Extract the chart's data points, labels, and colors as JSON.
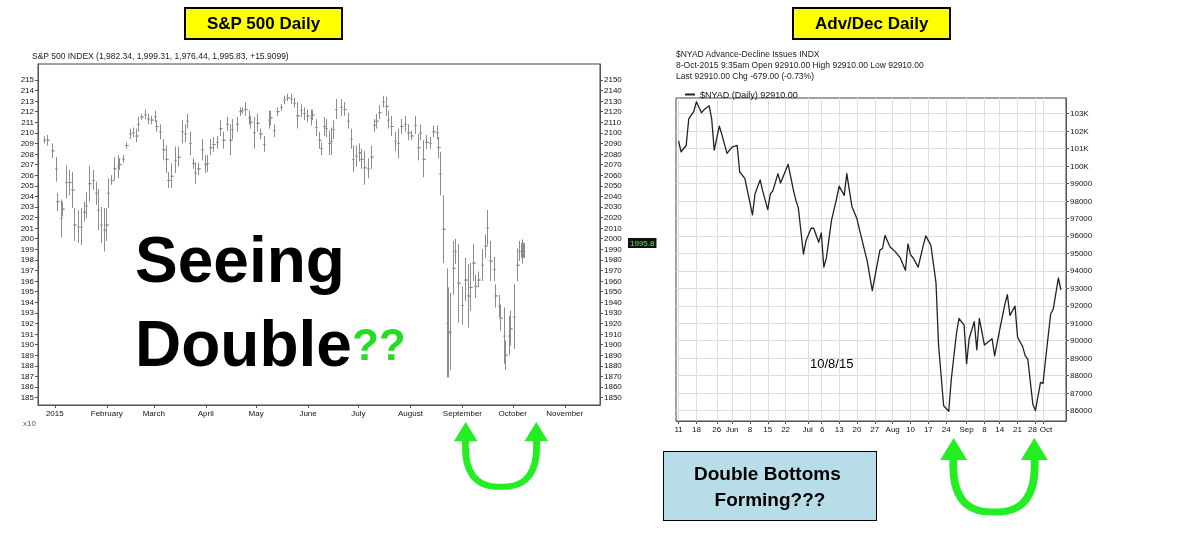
{
  "chart_data": [
    {
      "type": "candlestick",
      "title": "S&P 500 Daily",
      "subtitle": "S&P 500 INDEX (1,982.34, 1,999.31, 1,976.44, 1,995.83, +15.9099)",
      "y2label": "x10",
      "color": "#8c8c8c",
      "x": [
        "2014-12-26",
        "2014-12-28",
        "2014-12-31",
        "2015-01-02",
        "2015-01-03",
        "2015-01-05",
        "2015-01-06",
        "2015-01-08",
        "2015-01-10",
        "2015-01-12",
        "2015-01-13",
        "2015-01-15",
        "2015-01-17",
        "2015-01-19",
        "2015-01-20",
        "2015-01-22",
        "2015-01-24",
        "2015-01-26",
        "2015-01-27",
        "2015-01-29",
        "2015-01-31",
        "2015-02-01",
        "2015-02-02",
        "2015-02-04",
        "2015-02-06",
        "2015-02-08",
        "2015-02-09",
        "2015-02-11",
        "2015-02-13",
        "2015-02-15",
        "2015-02-17",
        "2015-02-19",
        "2015-02-20",
        "2015-02-22",
        "2015-02-24",
        "2015-02-26",
        "2015-02-28",
        "2015-03-02",
        "2015-03-03",
        "2015-03-05",
        "2015-03-07",
        "2015-03-09",
        "2015-03-10",
        "2015-03-12",
        "2015-03-14",
        "2015-03-16",
        "2015-03-18",
        "2015-03-20",
        "2015-03-21",
        "2015-03-23",
        "2015-03-25",
        "2015-03-26",
        "2015-03-28",
        "2015-03-30",
        "2015-04-01",
        "2015-04-02",
        "2015-04-04",
        "2015-04-06",
        "2015-04-08",
        "2015-04-10",
        "2015-04-12",
        "2015-04-14",
        "2015-04-16",
        "2015-04-17",
        "2015-04-20",
        "2015-04-22",
        "2015-04-23",
        "2015-04-25",
        "2015-04-27",
        "2015-04-28",
        "2015-04-30",
        "2015-05-02",
        "2015-05-04",
        "2015-05-06",
        "2015-05-09",
        "2015-05-10",
        "2015-05-12",
        "2015-05-14",
        "2015-05-16",
        "2015-05-18",
        "2015-05-20",
        "2015-05-22",
        "2015-05-24",
        "2015-05-26",
        "2015-05-28",
        "2015-05-30",
        "2015-06-01",
        "2015-06-03",
        "2015-06-04",
        "2015-06-06",
        "2015-06-08",
        "2015-06-09",
        "2015-06-11",
        "2015-06-12",
        "2015-06-14",
        "2015-06-15",
        "2015-06-16",
        "2015-06-18",
        "2015-06-21",
        "2015-06-23",
        "2015-06-25",
        "2015-06-27",
        "2015-06-28",
        "2015-06-30",
        "2015-07-02",
        "2015-07-03",
        "2015-07-05",
        "2015-07-07",
        "2015-07-09",
        "2015-07-11",
        "2015-07-12",
        "2015-07-14",
        "2015-07-16",
        "2015-07-18",
        "2015-07-19",
        "2015-07-21",
        "2015-07-23",
        "2015-07-25",
        "2015-07-27",
        "2015-07-29",
        "2015-07-31",
        "2015-08-02",
        "2015-08-04",
        "2015-08-06",
        "2015-08-07",
        "2015-08-09",
        "2015-08-11",
        "2015-08-13",
        "2015-08-15",
        "2015-08-17",
        "2015-08-18",
        "2015-08-19",
        "2015-08-21",
        "2015-08-23",
        "2015-08-24",
        "2015-08-25",
        "2015-08-27",
        "2015-08-28",
        "2015-08-30",
        "2015-09-01",
        "2015-09-03",
        "2015-09-05",
        "2015-09-06",
        "2015-09-08",
        "2015-09-09",
        "2015-09-11",
        "2015-09-13",
        "2015-09-15",
        "2015-09-16",
        "2015-09-18",
        "2015-09-20",
        "2015-09-21",
        "2015-09-23",
        "2015-09-24",
        "2015-09-26",
        "2015-09-27",
        "2015-09-29",
        "2015-09-30",
        "2015-10-02",
        "2015-10-04",
        "2015-10-05",
        "2015-10-07"
      ],
      "ohlc": [
        [
          2093,
          2097,
          2090,
          2093
        ],
        [
          2093,
          2098,
          2088,
          2093
        ],
        [
          2083,
          2090,
          2076,
          2083
        ],
        [
          2066,
          2077,
          2054,
          2066
        ],
        [
          2035,
          2043,
          2026,
          2035
        ],
        [
          2019,
          2037,
          2001,
          2019
        ],
        [
          2028,
          2035,
          2021,
          2028
        ],
        [
          2053,
          2069,
          2038,
          2053
        ],
        [
          2053,
          2065,
          2041,
          2053
        ],
        [
          2046,
          2063,
          2029,
          2046
        ],
        [
          2013,
          2029,
          1998,
          2013
        ],
        [
          2011,
          2027,
          1996,
          2011
        ],
        [
          2011,
          2029,
          1994,
          2011
        ],
        [
          2025,
          2035,
          2016,
          2025
        ],
        [
          2031,
          2044,
          2019,
          2031
        ],
        [
          2052,
          2069,
          2035,
          2052
        ],
        [
          2055,
          2065,
          2046,
          2055
        ],
        [
          2043,
          2054,
          2032,
          2043
        ],
        [
          2027,
          2047,
          2008,
          2027
        ],
        [
          2013,
          2030,
          1996,
          2013
        ],
        [
          2008,
          2029,
          1988,
          2008
        ],
        [
          2013,
          2029,
          1998,
          2013
        ],
        [
          2043,
          2057,
          2029,
          2043
        ],
        [
          2055,
          2060,
          2051,
          2055
        ],
        [
          2066,
          2077,
          2055,
          2066
        ],
        [
          2068,
          2079,
          2057,
          2068
        ],
        [
          2070,
          2076,
          2065,
          2070
        ],
        [
          2075,
          2079,
          2072,
          2075
        ],
        [
          2088,
          2091,
          2085,
          2088
        ],
        [
          2099,
          2104,
          2094,
          2099
        ],
        [
          2100,
          2105,
          2096,
          2100
        ],
        [
          2097,
          2104,
          2091,
          2097
        ],
        [
          2108,
          2115,
          2101,
          2108
        ],
        [
          2115,
          2118,
          2112,
          2115
        ],
        [
          2117,
          2122,
          2113,
          2117
        ],
        [
          2113,
          2118,
          2108,
          2113
        ],
        [
          2112,
          2116,
          2108,
          2112
        ],
        [
          2115,
          2121,
          2110,
          2115
        ],
        [
          2106,
          2112,
          2101,
          2106
        ],
        [
          2101,
          2108,
          2094,
          2101
        ],
        [
          2084,
          2094,
          2074,
          2084
        ],
        [
          2075,
          2088,
          2062,
          2075
        ],
        [
          2055,
          2063,
          2048,
          2055
        ],
        [
          2059,
          2071,
          2048,
          2059
        ],
        [
          2074,
          2087,
          2062,
          2074
        ],
        [
          2077,
          2087,
          2068,
          2077
        ],
        [
          2101,
          2112,
          2090,
          2101
        ],
        [
          2099,
          2108,
          2091,
          2099
        ],
        [
          2111,
          2118,
          2104,
          2111
        ],
        [
          2090,
          2101,
          2079,
          2090
        ],
        [
          2071,
          2076,
          2066,
          2071
        ],
        [
          2062,
          2072,
          2052,
          2062
        ],
        [
          2066,
          2072,
          2060,
          2066
        ],
        [
          2084,
          2094,
          2074,
          2084
        ],
        [
          2070,
          2079,
          2062,
          2070
        ],
        [
          2071,
          2079,
          2063,
          2071
        ],
        [
          2086,
          2094,
          2079,
          2086
        ],
        [
          2089,
          2096,
          2082,
          2089
        ],
        [
          2091,
          2097,
          2085,
          2091
        ],
        [
          2104,
          2112,
          2097,
          2104
        ],
        [
          2093,
          2101,
          2085,
          2093
        ],
        [
          2108,
          2115,
          2102,
          2108
        ],
        [
          2093,
          2108,
          2079,
          2093
        ],
        [
          2103,
          2113,
          2094,
          2103
        ],
        [
          2108,
          2115,
          2101,
          2108
        ],
        [
          2120,
          2124,
          2116,
          2120
        ],
        [
          2121,
          2124,
          2118,
          2121
        ],
        [
          2122,
          2129,
          2116,
          2122
        ],
        [
          2114,
          2121,
          2108,
          2114
        ],
        [
          2110,
          2116,
          2104,
          2110
        ],
        [
          2100,
          2115,
          2085,
          2100
        ],
        [
          2109,
          2118,
          2101,
          2109
        ],
        [
          2099,
          2104,
          2094,
          2099
        ],
        [
          2089,
          2097,
          2082,
          2089
        ],
        [
          2112,
          2121,
          2104,
          2112
        ],
        [
          2114,
          2121,
          2107,
          2114
        ],
        [
          2102,
          2108,
          2096,
          2102
        ],
        [
          2120,
          2124,
          2116,
          2120
        ],
        [
          2124,
          2127,
          2121,
          2124
        ],
        [
          2131,
          2135,
          2127,
          2131
        ],
        [
          2133,
          2137,
          2130,
          2133
        ],
        [
          2132,
          2137,
          2127,
          2132
        ],
        [
          2128,
          2133,
          2124,
          2128
        ],
        [
          2116,
          2129,
          2104,
          2116
        ],
        [
          2121,
          2127,
          2115,
          2121
        ],
        [
          2118,
          2124,
          2112,
          2118
        ],
        [
          2116,
          2122,
          2110,
          2116
        ],
        [
          2114,
          2122,
          2107,
          2114
        ],
        [
          2117,
          2122,
          2112,
          2117
        ],
        [
          2105,
          2113,
          2097,
          2105
        ],
        [
          2093,
          2101,
          2085,
          2093
        ],
        [
          2085,
          2091,
          2079,
          2085
        ],
        [
          2106,
          2115,
          2097,
          2106
        ],
        [
          2104,
          2113,
          2096,
          2104
        ],
        [
          2090,
          2102,
          2079,
          2090
        ],
        [
          2092,
          2105,
          2079,
          2092
        ],
        [
          2103,
          2112,
          2094,
          2103
        ],
        [
          2122,
          2132,
          2113,
          2122
        ],
        [
          2124,
          2132,
          2116,
          2124
        ],
        [
          2122,
          2129,
          2116,
          2122
        ],
        [
          2111,
          2119,
          2104,
          2111
        ],
        [
          2094,
          2104,
          2085,
          2094
        ],
        [
          2075,
          2088,
          2063,
          2075
        ],
        [
          2078,
          2088,
          2068,
          2078
        ],
        [
          2081,
          2090,
          2073,
          2081
        ],
        [
          2075,
          2085,
          2066,
          2075
        ],
        [
          2067,
          2083,
          2051,
          2067
        ],
        [
          2066,
          2076,
          2057,
          2066
        ],
        [
          2077,
          2088,
          2066,
          2077
        ],
        [
          2107,
          2113,
          2101,
          2107
        ],
        [
          2111,
          2118,
          2104,
          2111
        ],
        [
          2119,
          2126,
          2113,
          2119
        ],
        [
          2129,
          2135,
          2124,
          2129
        ],
        [
          2125,
          2134,
          2116,
          2125
        ],
        [
          2112,
          2121,
          2104,
          2112
        ],
        [
          2106,
          2116,
          2097,
          2106
        ],
        [
          2092,
          2101,
          2083,
          2092
        ],
        [
          2090,
          2104,
          2076,
          2090
        ],
        [
          2106,
          2113,
          2099,
          2106
        ],
        [
          2108,
          2116,
          2101,
          2108
        ],
        [
          2100,
          2108,
          2093,
          2100
        ],
        [
          2097,
          2102,
          2093,
          2097
        ],
        [
          2107,
          2116,
          2099,
          2107
        ],
        [
          2086,
          2099,
          2074,
          2086
        ],
        [
          2100,
          2108,
          2093,
          2100
        ],
        [
          2075,
          2093,
          2058,
          2075
        ],
        [
          2091,
          2098,
          2085,
          2091
        ],
        [
          2090,
          2096,
          2085,
          2090
        ],
        [
          2101,
          2107,
          2096,
          2101
        ],
        [
          2100,
          2107,
          2094,
          2100
        ],
        [
          2086,
          2096,
          2076,
          2086
        ],
        [
          2061,
          2082,
          2041,
          2061
        ],
        [
          2009,
          2041,
          1977,
          2009
        ],
        [
          1920,
          1972,
          1869,
          1920
        ],
        [
          1911,
          1954,
          1869,
          1911
        ],
        [
          1912,
          1949,
          1876,
          1912
        ],
        [
          1972,
          1998,
          1947,
          1972
        ],
        [
          1988,
          2000,
          1976,
          1988
        ],
        [
          1958,
          1995,
          1921,
          1958
        ],
        [
          1937,
          1955,
          1919,
          1937
        ],
        [
          1961,
          1982,
          1941,
          1961
        ],
        [
          1946,
          1976,
          1916,
          1946
        ],
        [
          1954,
          1977,
          1932,
          1954
        ],
        [
          1977,
          1995,
          1960,
          1977
        ],
        [
          1955,
          1966,
          1944,
          1955
        ],
        [
          1961,
          1969,
          1954,
          1961
        ],
        [
          1975,
          1990,
          1960,
          1975
        ],
        [
          1993,
          2004,
          1982,
          1993
        ],
        [
          2010,
          2027,
          1994,
          2010
        ],
        [
          1979,
          1998,
          1960,
          1979
        ],
        [
          1971,
          1983,
          1960,
          1971
        ],
        [
          1946,
          1957,
          1935,
          1946
        ],
        [
          1936,
          1947,
          1926,
          1936
        ],
        [
          1925,
          1938,
          1913,
          1925
        ],
        [
          1908,
          1935,
          1882,
          1908
        ],
        [
          1890,
          1904,
          1876,
          1890
        ],
        [
          1908,
          1927,
          1890,
          1908
        ],
        [
          1915,
          1932,
          1899,
          1915
        ],
        [
          1926,
          1957,
          1896,
          1926
        ],
        [
          1975,
          1991,
          1960,
          1975
        ],
        [
          1988,
          1998,
          1979,
          1988
        ],
        [
          1982.34,
          1999.31,
          1976.44,
          1995.83
        ]
      ],
      "xlim": [
        "2014-12-22",
        "2015-11-22"
      ],
      "xticks": [
        {
          "value": "2015-01-01",
          "label": "2015"
        },
        {
          "value": "2015-02-01",
          "label": "February"
        },
        {
          "value": "2015-03-01",
          "label": "March"
        },
        {
          "value": "2015-04-01",
          "label": "April"
        },
        {
          "value": "2015-05-01",
          "label": "May"
        },
        {
          "value": "2015-06-01",
          "label": "June"
        },
        {
          "value": "2015-07-01",
          "label": "July"
        },
        {
          "value": "2015-08-01",
          "label": "August"
        },
        {
          "value": "2015-09-01",
          "label": "September"
        },
        {
          "value": "2015-10-01",
          "label": "October"
        },
        {
          "value": "2015-11-01",
          "label": "November"
        }
      ],
      "ylim": [
        1843,
        2165
      ],
      "yticks": [
        1850,
        1860,
        1870,
        1880,
        1890,
        1900,
        1910,
        1920,
        1930,
        1940,
        1950,
        1960,
        1970,
        1980,
        1990,
        2000,
        2010,
        2020,
        2030,
        2040,
        2050,
        2060,
        2070,
        2080,
        2090,
        2100,
        2110,
        2120,
        2130,
        2140,
        2150
      ],
      "y2lim": [
        184.3,
        216.5
      ],
      "y2ticks": [
        185,
        186,
        187,
        188,
        189,
        190,
        191,
        192,
        193,
        194,
        195,
        196,
        197,
        198,
        199,
        200,
        201,
        202,
        203,
        204,
        205,
        206,
        207,
        208,
        209,
        210,
        211,
        212,
        213,
        214,
        215
      ],
      "annotations": [
        "Seeing Double??",
        "1995.8"
      ]
    },
    {
      "type": "line",
      "title": "Adv/Dec Daily",
      "subtitle": "$NYAD Advance-Decline Issues INDX\n8-Oct-2015 9:35am Open 92910.00 High 92910.00 Low 92910.00\nLast 92910.00 Chg -679.00 (-0.73%)",
      "legend": "top left",
      "grid": true,
      "series": [
        {
          "name": "$NYAD (Daily) 92910.00",
          "color": "#222222",
          "x": [
            "2015-05-11",
            "2015-05-12",
            "2015-05-14",
            "2015-05-15",
            "2015-05-17",
            "2015-05-18",
            "2015-05-20",
            "2015-05-21",
            "2015-05-23",
            "2015-05-24",
            "2015-05-25",
            "2015-05-27",
            "2015-05-28",
            "2015-05-30",
            "2015-06-01",
            "2015-06-03",
            "2015-06-04",
            "2015-06-06",
            "2015-06-09",
            "2015-06-10",
            "2015-06-12",
            "2015-06-13",
            "2015-06-15",
            "2015-06-16",
            "2015-06-17",
            "2015-06-19",
            "2015-06-20",
            "2015-06-23",
            "2015-06-25",
            "2015-06-26",
            "2015-06-27",
            "2015-06-29",
            "2015-06-30",
            "2015-07-02",
            "2015-07-03",
            "2015-07-05",
            "2015-07-06",
            "2015-07-07",
            "2015-07-08",
            "2015-07-10",
            "2015-07-12",
            "2015-07-13",
            "2015-07-15",
            "2015-07-16",
            "2015-07-18",
            "2015-07-20",
            "2015-07-21",
            "2015-07-24",
            "2015-07-26",
            "2015-07-29",
            "2015-07-30",
            "2015-07-31",
            "2015-08-02",
            "2015-08-04",
            "2015-08-06",
            "2015-08-08",
            "2015-08-09",
            "2015-08-10",
            "2015-08-11",
            "2015-08-13",
            "2015-08-15",
            "2015-08-16",
            "2015-08-18",
            "2015-08-20",
            "2015-08-21",
            "2015-08-23",
            "2015-08-25",
            "2015-08-26",
            "2015-08-28",
            "2015-08-29",
            "2015-08-31",
            "2015-09-01",
            "2015-09-02",
            "2015-09-04",
            "2015-09-05",
            "2015-09-06",
            "2015-09-08",
            "2015-09-11",
            "2015-09-12",
            "2015-09-14",
            "2015-09-16",
            "2015-09-17",
            "2015-09-18",
            "2015-09-20",
            "2015-09-21",
            "2015-09-23",
            "2015-09-24",
            "2015-09-25",
            "2015-09-27",
            "2015-09-28",
            "2015-09-30",
            "2015-10-01",
            "2015-10-02",
            "2015-10-04",
            "2015-10-05",
            "2015-10-07",
            "2015-10-08"
          ],
          "values": [
            101450,
            100820,
            101180,
            102700,
            103140,
            103680,
            103050,
            103230,
            103460,
            102700,
            100910,
            102290,
            101800,
            100730,
            101090,
            101180,
            99660,
            99300,
            97210,
            98400,
            99210,
            98580,
            97510,
            98400,
            98580,
            99570,
            99030,
            100100,
            98670,
            98050,
            97600,
            94960,
            95730,
            96440,
            96440,
            95640,
            96170,
            94210,
            94740,
            96890,
            98140,
            98850,
            98320,
            99570,
            97690,
            96980,
            96350,
            94570,
            92870,
            95190,
            95280,
            96030,
            95370,
            95100,
            94740,
            94030,
            95550,
            94920,
            94750,
            94210,
            95460,
            96000,
            95460,
            93320,
            89750,
            86270,
            85960,
            87790,
            90380,
            91270,
            90910,
            88680,
            90110,
            91090,
            89480,
            91270,
            89750,
            90110,
            89130,
            90640,
            92070,
            92640,
            91450,
            91980,
            90200,
            89660,
            89130,
            88950,
            86360,
            86000,
            87610,
            87550,
            88950,
            91540,
            91800,
            93590,
            92910
          ]
        }
      ],
      "xlim": [
        "2015-05-10",
        "2015-10-10"
      ],
      "xticks": [
        {
          "value": "2015-05-11",
          "label": "11"
        },
        {
          "value": "2015-05-18",
          "label": "18"
        },
        {
          "value": "2015-05-26",
          "label": "26"
        },
        {
          "value": "2015-06-01",
          "label": "Jun"
        },
        {
          "value": "2015-06-08",
          "label": "8"
        },
        {
          "value": "2015-06-15",
          "label": "15"
        },
        {
          "value": "2015-06-22",
          "label": "22"
        },
        {
          "value": "2015-07-01",
          "label": "Jul"
        },
        {
          "value": "2015-07-06",
          "label": "6"
        },
        {
          "value": "2015-07-13",
          "label": "13"
        },
        {
          "value": "2015-07-20",
          "label": "20"
        },
        {
          "value": "2015-07-27",
          "label": "27"
        },
        {
          "value": "2015-08-03",
          "label": "Aug"
        },
        {
          "value": "2015-08-10",
          "label": "10"
        },
        {
          "value": "2015-08-17",
          "label": "17"
        },
        {
          "value": "2015-08-24",
          "label": "24"
        },
        {
          "value": "2015-09-01",
          "label": "Sep"
        },
        {
          "value": "2015-09-08",
          "label": "8"
        },
        {
          "value": "2015-09-14",
          "label": "14"
        },
        {
          "value": "2015-09-21",
          "label": "21"
        },
        {
          "value": "2015-09-28",
          "label": "28"
        },
        {
          "value": "2015-10-01",
          "label": "Oct"
        }
      ],
      "ylim": [
        85400,
        103900
      ],
      "yticks": [
        86000,
        87000,
        88000,
        89000,
        90000,
        91000,
        92000,
        93000,
        94000,
        95000,
        96000,
        97000,
        98000,
        99000,
        {
          "value": 100000,
          "label": "100K"
        },
        {
          "value": 101000,
          "label": "101K"
        },
        {
          "value": 102000,
          "label": "102K"
        },
        {
          "value": 103000,
          "label": "103K"
        }
      ],
      "annotations": [
        "10/8/15",
        "Double Bottoms Forming???"
      ]
    }
  ]
}
